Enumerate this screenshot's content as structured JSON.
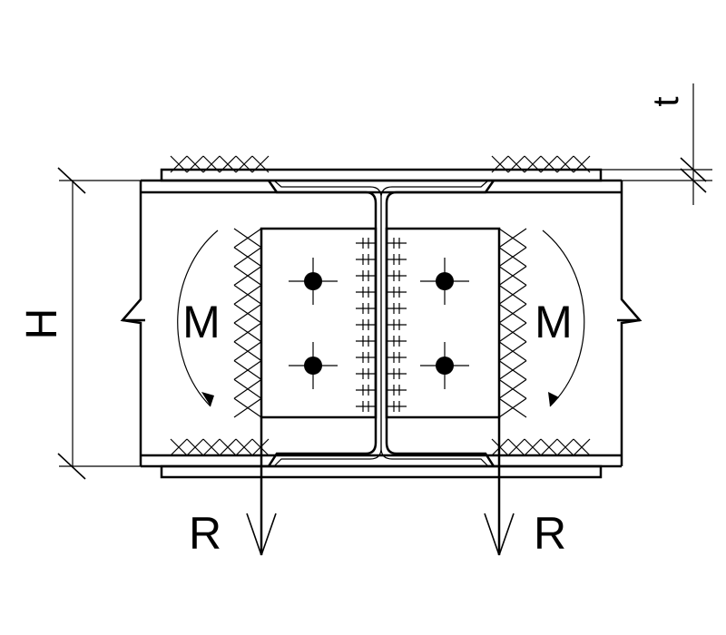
{
  "labels": {
    "height": "H",
    "thickness": "t",
    "moment_left": "M",
    "moment_right": "M",
    "reaction_left": "R",
    "reaction_right": "R"
  }
}
